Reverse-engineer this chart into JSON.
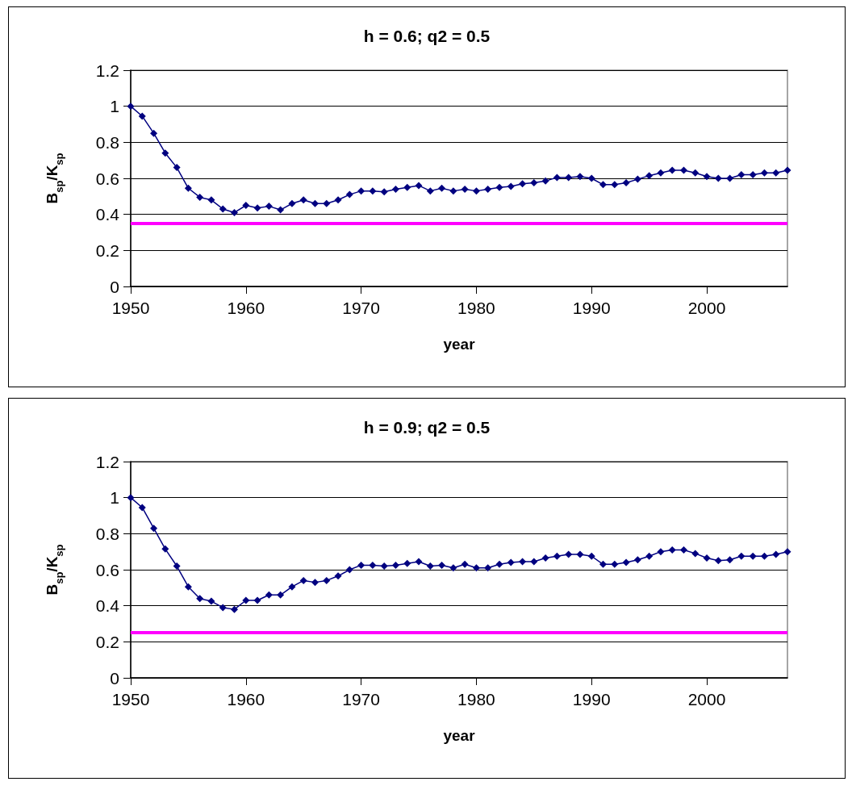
{
  "chart_data": [
    {
      "type": "line",
      "title": "h = 0.6; q2 = 0.5",
      "xlabel": "year",
      "ylabel": "B$_{sp}$/K$_{sp}$",
      "x": [
        1950,
        1951,
        1952,
        1953,
        1954,
        1955,
        1956,
        1957,
        1958,
        1959,
        1960,
        1961,
        1962,
        1963,
        1964,
        1965,
        1966,
        1967,
        1968,
        1969,
        1970,
        1971,
        1972,
        1973,
        1974,
        1975,
        1976,
        1977,
        1978,
        1979,
        1980,
        1981,
        1982,
        1983,
        1984,
        1985,
        1986,
        1987,
        1988,
        1989,
        1990,
        1991,
        1992,
        1993,
        1994,
        1995,
        1996,
        1997,
        1998,
        1999,
        2000,
        2001,
        2002,
        2003,
        2004,
        2005,
        2006,
        2007
      ],
      "series": [
        {
          "color": "#000080",
          "values": [
            1.0,
            0.945,
            0.85,
            0.74,
            0.66,
            0.545,
            0.495,
            0.48,
            0.43,
            0.41,
            0.45,
            0.435,
            0.445,
            0.425,
            0.46,
            0.48,
            0.46,
            0.46,
            0.48,
            0.51,
            0.53,
            0.53,
            0.525,
            0.54,
            0.55,
            0.56,
            0.53,
            0.545,
            0.53,
            0.54,
            0.53,
            0.54,
            0.55,
            0.555,
            0.57,
            0.575,
            0.585,
            0.605,
            0.605,
            0.61,
            0.6,
            0.565,
            0.565,
            0.575,
            0.595,
            0.615,
            0.63,
            0.645,
            0.645,
            0.63,
            0.61,
            0.6,
            0.6,
            0.62,
            0.62,
            0.63,
            0.63,
            0.645
          ]
        }
      ],
      "xlim": [
        1950,
        2007
      ],
      "xticks": [
        1950,
        1960,
        1970,
        1980,
        1990,
        2000
      ],
      "ylim": [
        0,
        1.2
      ],
      "yticks": [
        0,
        0.2,
        0.4,
        0.6,
        0.8,
        1,
        1.2
      ],
      "ref_lines": [
        {
          "axis": "y",
          "value": 0.35,
          "color": "#ff00ff"
        }
      ],
      "grid": "y",
      "marker": "diamond",
      "line_style": "solid"
    },
    {
      "type": "line",
      "title": "h = 0.9; q2 = 0.5",
      "xlabel": "year",
      "ylabel": "B$_{sp}$/K$_{sp}$",
      "x": [
        1950,
        1951,
        1952,
        1953,
        1954,
        1955,
        1956,
        1957,
        1958,
        1959,
        1960,
        1961,
        1962,
        1963,
        1964,
        1965,
        1966,
        1967,
        1968,
        1969,
        1970,
        1971,
        1972,
        1973,
        1974,
        1975,
        1976,
        1977,
        1978,
        1979,
        1980,
        1981,
        1982,
        1983,
        1984,
        1985,
        1986,
        1987,
        1988,
        1989,
        1990,
        1991,
        1992,
        1993,
        1994,
        1995,
        1996,
        1997,
        1998,
        1999,
        2000,
        2001,
        2002,
        2003,
        2004,
        2005,
        2006,
        2007
      ],
      "series": [
        {
          "color": "#000080",
          "values": [
            1.0,
            0.945,
            0.83,
            0.715,
            0.62,
            0.505,
            0.44,
            0.425,
            0.39,
            0.38,
            0.43,
            0.43,
            0.46,
            0.46,
            0.505,
            0.54,
            0.53,
            0.54,
            0.565,
            0.6,
            0.625,
            0.625,
            0.62,
            0.625,
            0.635,
            0.645,
            0.62,
            0.625,
            0.61,
            0.63,
            0.61,
            0.61,
            0.63,
            0.64,
            0.645,
            0.645,
            0.665,
            0.675,
            0.685,
            0.685,
            0.675,
            0.63,
            0.63,
            0.64,
            0.655,
            0.675,
            0.7,
            0.71,
            0.71,
            0.69,
            0.665,
            0.65,
            0.655,
            0.675,
            0.675,
            0.675,
            0.685,
            0.7
          ]
        }
      ],
      "xlim": [
        1950,
        2007
      ],
      "xticks": [
        1950,
        1960,
        1970,
        1980,
        1990,
        2000
      ],
      "ylim": [
        0,
        1.2
      ],
      "yticks": [
        0,
        0.2,
        0.4,
        0.6,
        0.8,
        1,
        1.2
      ],
      "ref_lines": [
        {
          "axis": "y",
          "value": 0.25,
          "color": "#ff00ff"
        }
      ],
      "grid": "y",
      "marker": "diamond",
      "line_style": "solid"
    }
  ]
}
